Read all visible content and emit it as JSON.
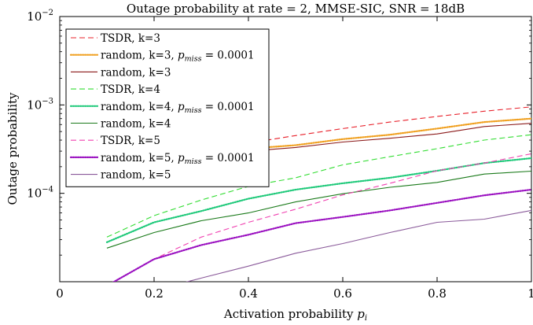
{
  "chart_data": {
    "type": "line",
    "title": "Outage probability at rate = 2, MMSE-SIC, SNR = 18dB",
    "xlabel": "Activation probability p_i",
    "ylabel": "Outage probability",
    "xlim": [
      0,
      1
    ],
    "ylim": [
      1e-05,
      0.01
    ],
    "yscale": "log",
    "x_ticks": [
      "0",
      "0.2",
      "0.4",
      "0.6",
      "0.8",
      "1"
    ],
    "y_ticks": [
      {
        "value": 0.01,
        "base": "10",
        "exp": "−2"
      },
      {
        "value": 0.001,
        "base": "10",
        "exp": "−3"
      },
      {
        "value": 0.0001,
        "base": "10",
        "exp": "−4"
      }
    ],
    "legend_position": "top-left",
    "series": [
      {
        "name": "TSDR, k=3",
        "color": "#e8202a",
        "dash": "dashed",
        "x": [
          0.1,
          0.2,
          0.3,
          0.4,
          0.5,
          0.6,
          0.7,
          0.8,
          0.9,
          1.0
        ],
        "y": [
          0.00014,
          0.00021,
          0.00029,
          0.00037,
          0.00045,
          0.00054,
          0.00064,
          0.00074,
          0.00085,
          0.00095
        ]
      },
      {
        "name": "random, k=3, p_miss = 0.0001",
        "color": "#f0a020",
        "dash": "dotted",
        "x": [
          0.1,
          0.2,
          0.3,
          0.4,
          0.5,
          0.6,
          0.7,
          0.8,
          0.9,
          1.0
        ],
        "y": [
          0.00015,
          0.00021,
          0.00027,
          0.00032,
          0.00035,
          0.00041,
          0.00046,
          0.00054,
          0.00064,
          0.0007
        ]
      },
      {
        "name": "random, k=3",
        "color": "#8b1a1a",
        "dash": "solid",
        "x": [
          0.1,
          0.2,
          0.3,
          0.4,
          0.5,
          0.6,
          0.7,
          0.8,
          0.9,
          1.0
        ],
        "y": [
          0.00014,
          0.00021,
          0.00026,
          0.0003,
          0.00033,
          0.00038,
          0.00042,
          0.00047,
          0.00057,
          0.00062
        ]
      },
      {
        "name": "TSDR, k=4",
        "color": "#33dd33",
        "dash": "dashed",
        "x": [
          0.1,
          0.2,
          0.3,
          0.4,
          0.5,
          0.6,
          0.7,
          0.8,
          0.9,
          1.0
        ],
        "y": [
          3.2e-05,
          5.6e-05,
          8.4e-05,
          0.00012,
          0.00015,
          0.00021,
          0.00026,
          0.00032,
          0.0004,
          0.00046
        ]
      },
      {
        "name": "random, k=4, p_miss = 0.0001",
        "color": "#1fc97a",
        "dash": "dotted",
        "x": [
          0.1,
          0.2,
          0.3,
          0.4,
          0.5,
          0.6,
          0.7,
          0.8,
          0.9,
          1.0
        ],
        "y": [
          2.8e-05,
          4.7e-05,
          6.3e-05,
          8.7e-05,
          0.00011,
          0.00013,
          0.00015,
          0.00018,
          0.00022,
          0.00025
        ]
      },
      {
        "name": "random, k=4",
        "color": "#1a7a1a",
        "dash": "solid",
        "x": [
          0.1,
          0.2,
          0.3,
          0.4,
          0.5,
          0.6,
          0.7,
          0.8,
          0.9,
          1.0
        ],
        "y": [
          2.4e-05,
          3.6e-05,
          4.9e-05,
          6e-05,
          8e-05,
          9.9e-05,
          0.000117,
          0.000133,
          0.000165,
          0.000178
        ]
      },
      {
        "name": "TSDR, k=5",
        "color": "#f040b0",
        "dash": "dashed",
        "x": [
          0.1,
          0.2,
          0.3,
          0.4,
          0.5,
          0.6,
          0.7,
          0.8,
          0.9,
          1.0
        ],
        "y": [
          9e-06,
          1.8e-05,
          3.2e-05,
          4.7e-05,
          6.6e-05,
          9.6e-05,
          0.00013,
          0.00018,
          0.00022,
          0.00028
        ]
      },
      {
        "name": "random, k=5, p_miss = 0.0001",
        "color": "#9a10c0",
        "dash": "dotted",
        "x": [
          0.1,
          0.2,
          0.3,
          0.4,
          0.5,
          0.6,
          0.7,
          0.8,
          0.9,
          1.0
        ],
        "y": [
          9e-06,
          1.8e-05,
          2.6e-05,
          3.4e-05,
          4.6e-05,
          5.4e-05,
          6.4e-05,
          7.8e-05,
          9.5e-05,
          0.00011
        ]
      },
      {
        "name": "random, k=5",
        "color": "#8a5a9a",
        "dash": "solid",
        "x": [
          0.2,
          0.3,
          0.4,
          0.5,
          0.6,
          0.7,
          0.8,
          0.9,
          1.0
        ],
        "y": [
          8e-06,
          1.1e-05,
          1.5e-05,
          2.1e-05,
          2.7e-05,
          3.6e-05,
          4.7e-05,
          5.1e-05,
          6.4e-05
        ]
      }
    ]
  }
}
